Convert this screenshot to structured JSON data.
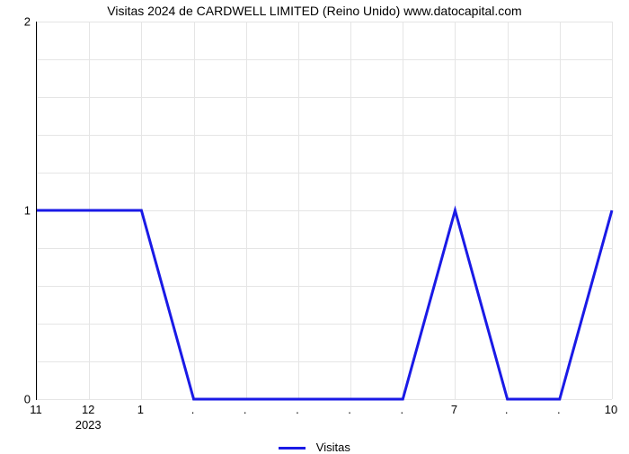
{
  "chart": {
    "type": "line",
    "title": "Visitas 2024 de CARDWELL LIMITED (Reino Unido) www.datocapital.com",
    "title_fontsize": 14,
    "background_color": "#ffffff",
    "grid_color": "#e5e5e5",
    "axis_color": "#000000",
    "line_color": "#1a1ae6",
    "line_width": 3,
    "ylim": [
      0,
      2
    ],
    "yticks": [
      0,
      1,
      2
    ],
    "y_minor_count": 5,
    "x_categories": [
      "11",
      "12",
      "1",
      ".",
      ".",
      ".",
      ".",
      ".",
      "7",
      ".",
      ".",
      "10"
    ],
    "x_sub_label": "2023",
    "x_sub_under_index": 1,
    "values": [
      1,
      1,
      1,
      0,
      0,
      0,
      0,
      0,
      1,
      0,
      0,
      1
    ],
    "legend_label": "Visitas"
  }
}
